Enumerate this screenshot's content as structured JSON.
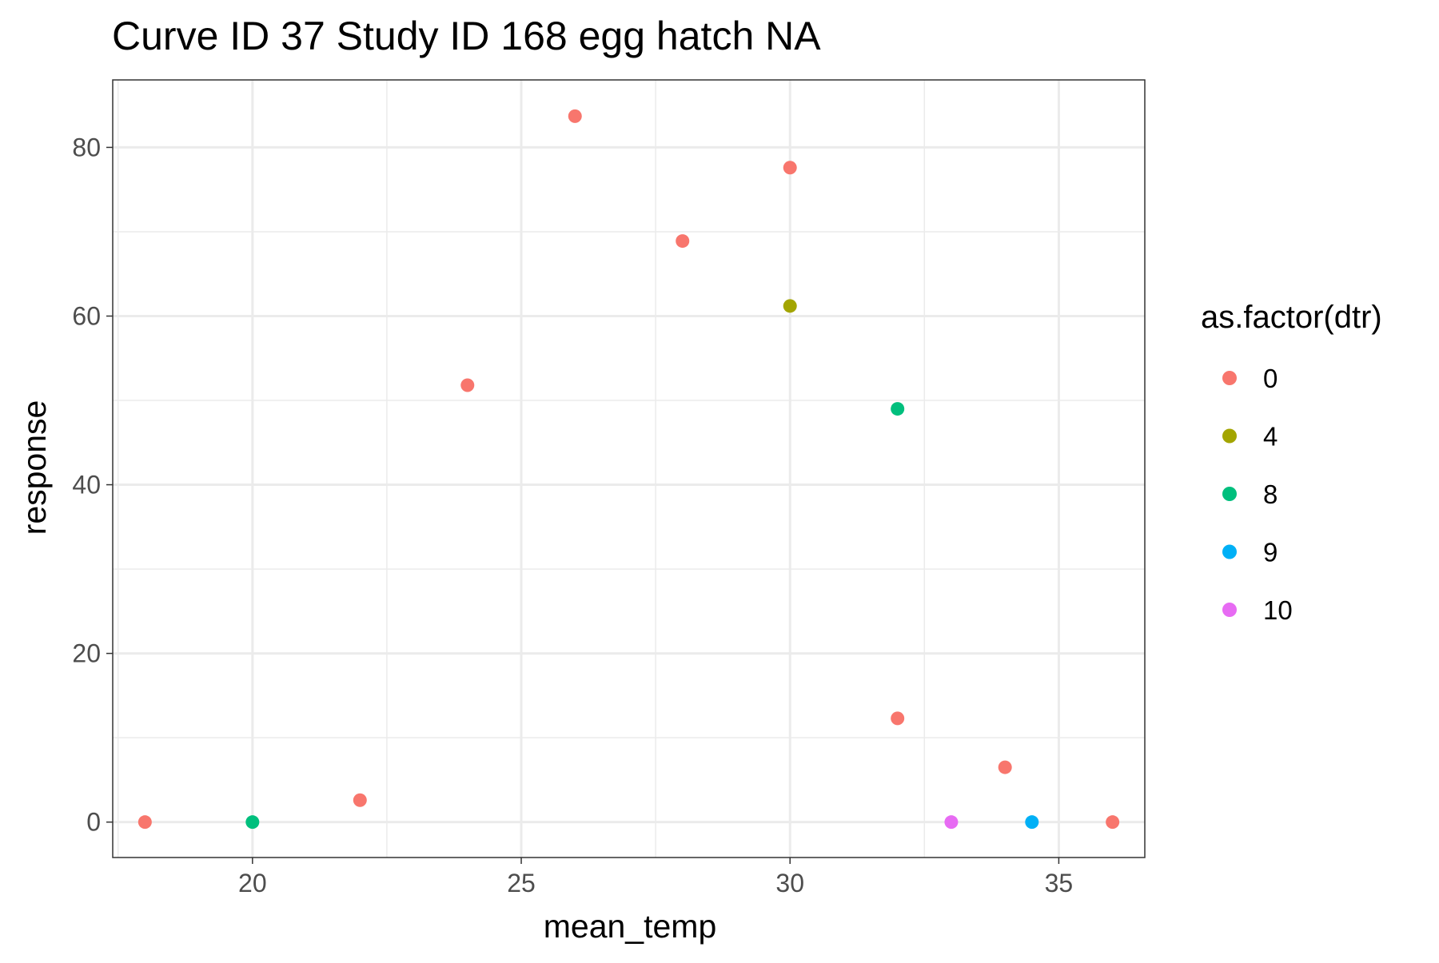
{
  "chart_data": {
    "type": "scatter",
    "title": "Curve ID 37 Study ID 168 egg hatch NA",
    "xlabel": "mean_temp",
    "ylabel": "response",
    "xlim": [
      17.4,
      36.6
    ],
    "ylim": [
      -4.2,
      88
    ],
    "x_ticks": [
      20,
      25,
      30,
      35
    ],
    "x_minor_ticks": [
      17.5,
      22.5,
      27.5,
      32.5
    ],
    "y_ticks": [
      0,
      20,
      40,
      60,
      80
    ],
    "y_minor_ticks": [
      10,
      30,
      50,
      70
    ],
    "grid": true,
    "legend": {
      "title": "as.factor(dtr)",
      "placement": "right",
      "entries": [
        {
          "label": "0",
          "color": "#F8766D"
        },
        {
          "label": "4",
          "color": "#A3A500"
        },
        {
          "label": "8",
          "color": "#00BF7D"
        },
        {
          "label": "9",
          "color": "#00B0F6"
        },
        {
          "label": "10",
          "color": "#E76BF3"
        }
      ]
    },
    "series": [
      {
        "name": "0",
        "color": "#F8766D",
        "points": [
          {
            "x": 18,
            "y": 0
          },
          {
            "x": 22,
            "y": 2.6
          },
          {
            "x": 24,
            "y": 51.8
          },
          {
            "x": 26,
            "y": 83.7
          },
          {
            "x": 28,
            "y": 68.9
          },
          {
            "x": 30,
            "y": 77.6
          },
          {
            "x": 32,
            "y": 12.3
          },
          {
            "x": 34,
            "y": 6.5
          },
          {
            "x": 36,
            "y": 0
          }
        ]
      },
      {
        "name": "4",
        "color": "#A3A500",
        "points": [
          {
            "x": 30,
            "y": 61.2
          }
        ]
      },
      {
        "name": "8",
        "color": "#00BF7D",
        "points": [
          {
            "x": 20,
            "y": 0
          },
          {
            "x": 32,
            "y": 49.0
          }
        ]
      },
      {
        "name": "9",
        "color": "#00B0F6",
        "points": [
          {
            "x": 34.5,
            "y": 0
          }
        ]
      },
      {
        "name": "10",
        "color": "#E76BF3",
        "points": [
          {
            "x": 33,
            "y": 0
          }
        ]
      }
    ]
  }
}
